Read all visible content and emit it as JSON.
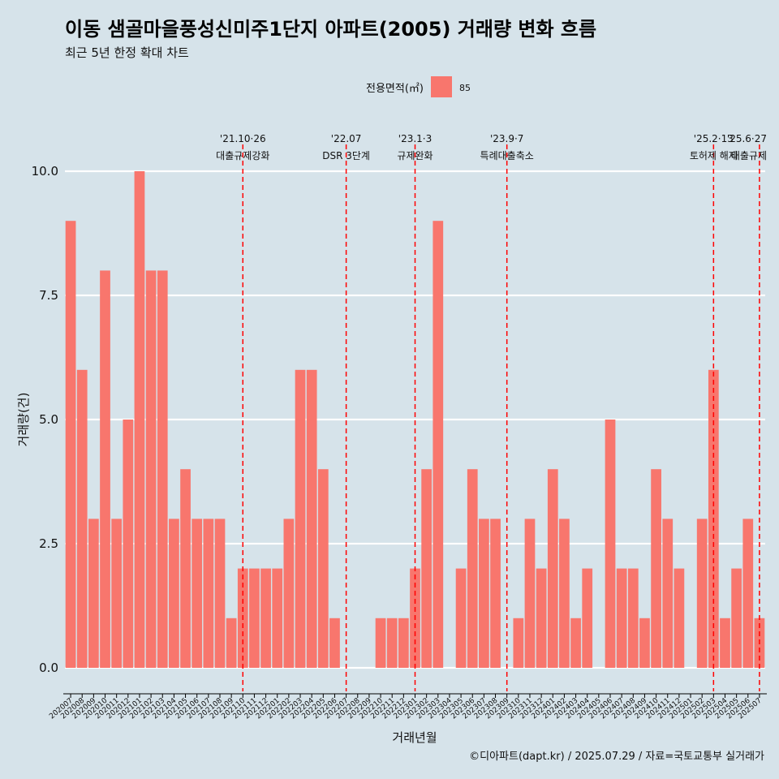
{
  "title": "이동 샘골마을풍성신미주1단지 아파트(2005) 거래량 변화 흐름",
  "subtitle": "최근 5년 한정 확대 차트",
  "caption": "©디아파트(dapt.kr) / 2025.07.29 / 자료=국토교통부 실거래가",
  "legend": {
    "title": "전용면적(㎡)",
    "key": "85",
    "color": "#f8766d"
  },
  "chart_data": {
    "type": "bar",
    "xlabel": "거래년월",
    "ylabel": "거래량(건)",
    "ylim": [
      0,
      10.5
    ],
    "yticks": [
      0,
      2.5,
      5,
      7.5,
      10
    ],
    "ytick_labels": [
      "0.0",
      "2.5",
      "5.0",
      "7.5",
      "10.0"
    ],
    "categories": [
      "202007",
      "202008",
      "202009",
      "202010",
      "202011",
      "202012",
      "202101",
      "202102",
      "202103",
      "202104",
      "202105",
      "202106",
      "202107",
      "202108",
      "202109",
      "202110",
      "202111",
      "202112",
      "202201",
      "202202",
      "202203",
      "202204",
      "202205",
      "202206",
      "202207",
      "202208",
      "202209",
      "202210",
      "202211",
      "202212",
      "202301",
      "202302",
      "202303",
      "202304",
      "202305",
      "202306",
      "202307",
      "202308",
      "202309",
      "202310",
      "202311",
      "202312",
      "202401",
      "202402",
      "202403",
      "202404",
      "202405",
      "202406",
      "202407",
      "202408",
      "202409",
      "202410",
      "202411",
      "202412",
      "202501",
      "202502",
      "202503",
      "202504",
      "202505",
      "202506",
      "202507"
    ],
    "series": [
      {
        "name": "85",
        "values": [
          9,
          6,
          3,
          8,
          3,
          5,
          10,
          8,
          8,
          3,
          4,
          3,
          3,
          3,
          1,
          2,
          2,
          2,
          2,
          3,
          6,
          6,
          4,
          1,
          0,
          0,
          0,
          1,
          1,
          1,
          2,
          4,
          9,
          0,
          2,
          4,
          3,
          3,
          0,
          1,
          3,
          2,
          4,
          3,
          1,
          2,
          0,
          5,
          2,
          2,
          1,
          4,
          3,
          2,
          0,
          3,
          6,
          1,
          2,
          3,
          1
        ]
      }
    ],
    "events": [
      {
        "category": "202110",
        "date_label": "'21.10·26",
        "text": "대출규제강화"
      },
      {
        "category": "202207",
        "date_label": "'22.07",
        "text": "DSR 3단계"
      },
      {
        "category": "202301",
        "date_label": "'23.1·3",
        "text": "규제완화"
      },
      {
        "category": "202309",
        "date_label": "'23.9·7",
        "text": "특례대출축소"
      },
      {
        "category": "202503",
        "date_label": "'25.2·13",
        "text": "토허제 해제"
      },
      {
        "category": "202507",
        "date_label": "'25.6·27",
        "text": "대출규제"
      }
    ],
    "grid": true,
    "legend_position": "top"
  }
}
